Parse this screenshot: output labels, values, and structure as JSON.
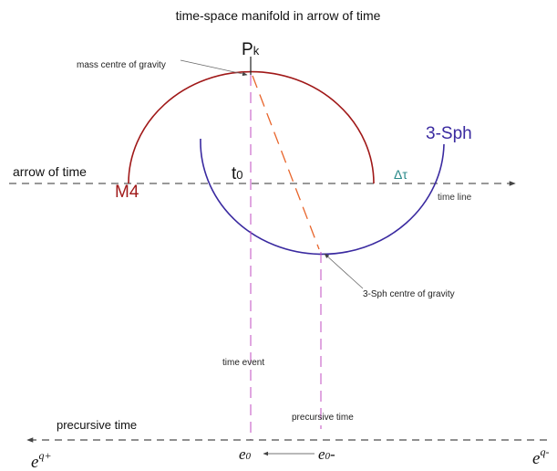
{
  "title": "time-space manifold in arrow of time",
  "labels": {
    "pk": {
      "base": "P",
      "sub": "k"
    },
    "mass_centre": "mass centre of gravity",
    "sph": "3-Sph",
    "arrow_of_time": "arrow of time",
    "m4": "M4",
    "t0": {
      "base": "t",
      "sub": "0"
    },
    "delta_tau": "Δτ",
    "time_line": "time line",
    "sph_centre": "3-Sph centre of gravity",
    "time_event": "time event",
    "precursive_time_upper": "precursive time",
    "precursive_time_lower": "precursive time",
    "eq_plus": {
      "base": "e",
      "sup": "q+"
    },
    "eq_minus": {
      "base": "e",
      "sup": "q-"
    },
    "e0": {
      "base": "e",
      "sub": "0"
    },
    "e0_minus": {
      "base": "e",
      "sub": "0",
      "suffix": "-"
    }
  }
}
